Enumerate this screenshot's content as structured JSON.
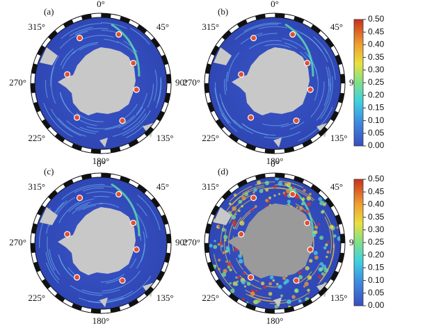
{
  "panels": [
    {
      "label": "(a)"
    },
    {
      "label": "(b)"
    },
    {
      "label": "(c)"
    },
    {
      "label": "(d)"
    }
  ],
  "angle_labels": [
    "0°",
    "45°",
    "90°",
    "135°",
    "180°",
    "225°",
    "270°",
    "315°"
  ],
  "colorbar": {
    "lim": [
      0,
      0.5
    ],
    "ticks": [
      {
        "value": 0,
        "label": "0.00"
      },
      0.05,
      {
        "value": 0.1,
        "label": "0.10"
      },
      0.15,
      {
        "value": 0.2,
        "label": "0.20"
      },
      0.25,
      {
        "value": 0.3,
        "label": "0.30"
      },
      0.35,
      {
        "value": 0.4,
        "label": "0.40"
      },
      0.45,
      {
        "value": 0.5,
        "label": "0.50"
      }
    ]
  }
}
